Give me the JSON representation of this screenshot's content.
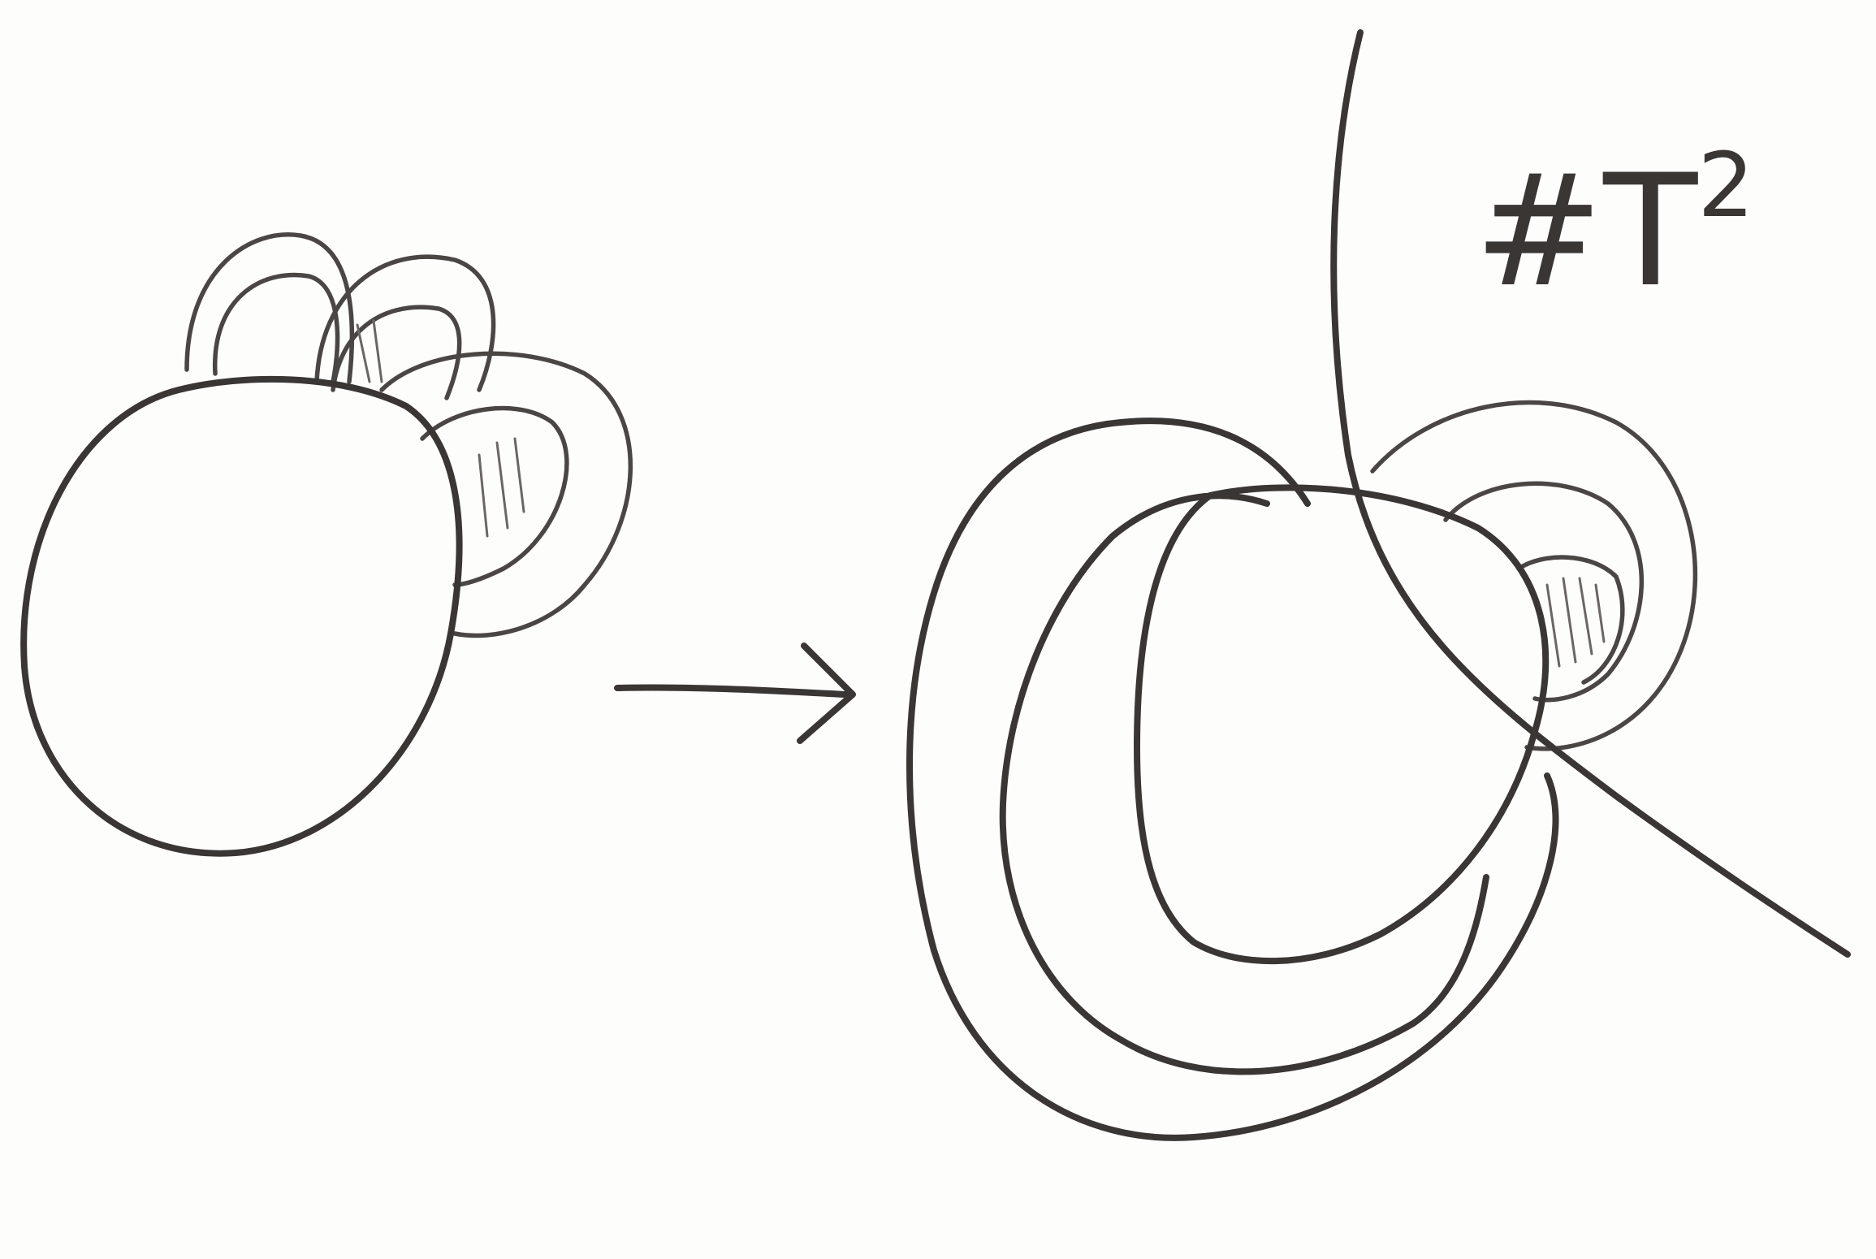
{
  "diagram": {
    "ink_color": "#3a3634",
    "paper_color": "#fdfdfc",
    "annotation": {
      "prefix": "#T",
      "superscript": "2"
    },
    "parts": [
      "small-sphere-with-loops",
      "arrow",
      "enlarged-sphere-with-loops-and-curve"
    ]
  }
}
